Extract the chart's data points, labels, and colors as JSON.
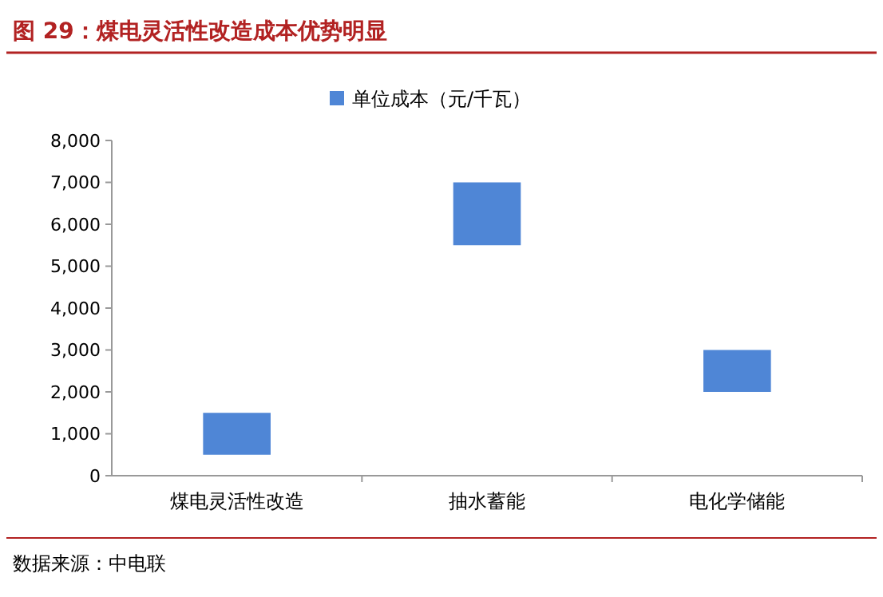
{
  "chart_data": {
    "type": "bar",
    "title": "图 29：煤电灵活性改造成本优势明显",
    "categories": [
      "煤电灵活性改造",
      "抽水蓄能",
      "电化学储能"
    ],
    "series": [
      {
        "name": "单位成本（元/千瓦）",
        "color": "#4f86d6",
        "values": [
          1000,
          1500,
          1000
        ],
        "base": [
          500,
          5500,
          2000
        ]
      }
    ],
    "ylim": [
      0,
      8000
    ],
    "yticks": [
      0,
      {
        "value": 1000,
        "label": "1,000"
      },
      {
        "value": 2000,
        "label": "2,000"
      },
      {
        "value": 3000,
        "label": "3,000"
      },
      {
        "value": 4000,
        "label": "4,000"
      },
      {
        "value": 5000,
        "label": "5,000"
      },
      {
        "value": 6000,
        "label": "6,000"
      },
      {
        "value": 7000,
        "label": "7,000"
      },
      {
        "value": 8000,
        "label": "8,000"
      }
    ],
    "legend": "top",
    "annotations": [
      "数据来源：中电联"
    ]
  }
}
